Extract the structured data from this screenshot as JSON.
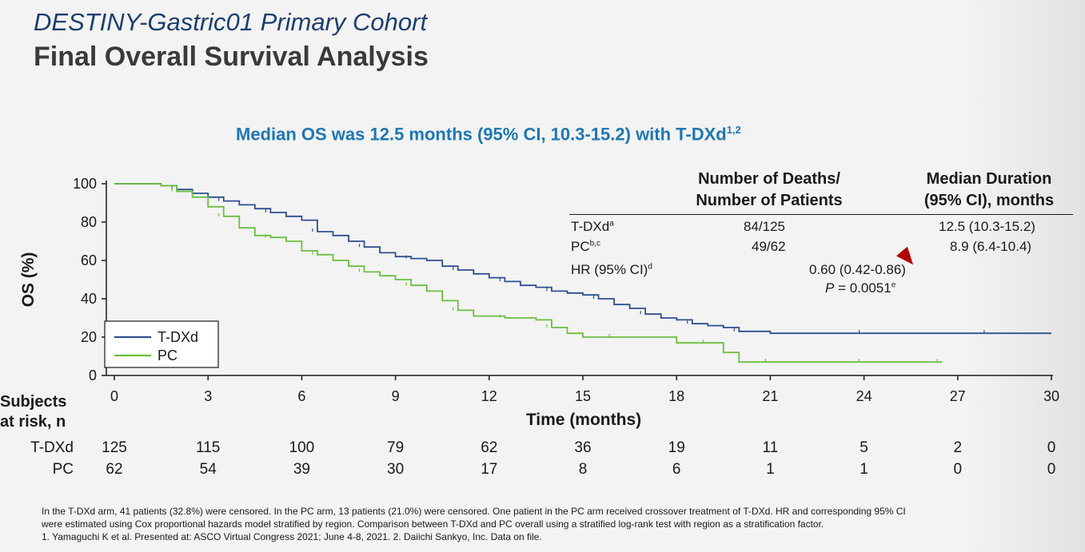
{
  "slide": {
    "kicker": "DESTINY-Gastric01 Primary Cohort",
    "title": "Final Overall Survival Analysis",
    "subtitle": "Median OS was 12.5 months (95% CI, 10.3-15.2) with T-DXd",
    "subtitle_refs": "1,2"
  },
  "colors": {
    "tdxd": "#2e4f8f",
    "pc": "#6abf3f",
    "subtitle": "#1f77b4",
    "kicker": "#1c3f6e"
  },
  "stats_table": {
    "header_deaths_line1": "Number of Deaths/",
    "header_deaths_line2": "Number of Patients",
    "header_median_line1": "Median Duration",
    "header_median_line2": "(95% CI), months",
    "rows": [
      {
        "label": "T-DXd",
        "sup": "a",
        "deaths": "84/125",
        "median": "12.5 (10.3-15.2)"
      },
      {
        "label": "PC",
        "sup": "b,c",
        "deaths": "49/62",
        "median": "8.9 (6.4-10.4)"
      }
    ],
    "hr_label": "HR (95% CI)",
    "hr_sup": "d",
    "hr_value": "0.60 (0.42-0.86)",
    "p_label": "P",
    "p_value": " = 0.0051",
    "p_sup": "e"
  },
  "chart_data": {
    "type": "line",
    "title": "",
    "xlabel": "Time (months)",
    "ylabel": "OS (%)",
    "xlim": [
      0,
      30
    ],
    "ylim": [
      0,
      100
    ],
    "xticks": [
      0,
      3,
      6,
      9,
      12,
      15,
      18,
      21,
      24,
      27,
      30
    ],
    "yticks": [
      0,
      20,
      40,
      60,
      80,
      100
    ],
    "grid": false,
    "legend_position": "bottom-left",
    "series": [
      {
        "name": "T-DXd",
        "color": "#2e4f8f",
        "x": [
          0,
          1.5,
          2,
          2.5,
          3,
          3.5,
          4,
          4.5,
          5,
          5.5,
          6,
          6.5,
          7,
          7.5,
          8,
          8.5,
          9,
          9.5,
          10,
          10.5,
          11,
          11.5,
          12,
          12.5,
          13,
          13.5,
          14,
          14.5,
          15,
          15.5,
          16,
          16.5,
          17,
          17.5,
          18,
          18.5,
          19,
          19.5,
          20,
          21,
          22,
          24,
          26,
          27,
          28,
          29,
          30
        ],
        "y": [
          100,
          99,
          97,
          95,
          93,
          91,
          89,
          87,
          85,
          83,
          81,
          75,
          73,
          70,
          67,
          64,
          62,
          61,
          60,
          57,
          55,
          53,
          51,
          49,
          47,
          46,
          44,
          43,
          42,
          40,
          37,
          35,
          32,
          30,
          29,
          27,
          26,
          25,
          23,
          22,
          22,
          22,
          22,
          22,
          22,
          22,
          22
        ]
      },
      {
        "name": "PC",
        "color": "#6abf3f",
        "x": [
          0,
          1.5,
          2,
          2.5,
          3,
          3.5,
          4,
          4.5,
          5,
          5.5,
          6,
          6.5,
          7,
          7.5,
          8,
          8.5,
          9,
          9.5,
          10,
          10.5,
          11,
          11.5,
          12,
          12.5,
          13,
          13.5,
          14,
          14.5,
          15,
          16,
          17,
          18,
          19,
          19.5,
          20,
          21,
          22,
          23,
          24,
          25,
          26,
          26.5
        ],
        "y": [
          100,
          99,
          96,
          93,
          88,
          83,
          77,
          73,
          72,
          70,
          65,
          63,
          60,
          57,
          54,
          52,
          50,
          47,
          44,
          39,
          34,
          31,
          31,
          30,
          30,
          29,
          25,
          22,
          20,
          20,
          20,
          17,
          17,
          12,
          7,
          7,
          7,
          7,
          7,
          7,
          7,
          7
        ]
      }
    ],
    "at_risk": {
      "title_line1": "Subjects",
      "title_line2": "at risk, n",
      "times": [
        0,
        3,
        6,
        9,
        12,
        15,
        18,
        21,
        24,
        27,
        30
      ],
      "rows": [
        {
          "name": "T-DXd",
          "counts": [
            125,
            115,
            100,
            79,
            62,
            36,
            19,
            11,
            5,
            2,
            0
          ]
        },
        {
          "name": "PC",
          "counts": [
            62,
            54,
            39,
            30,
            17,
            8,
            6,
            1,
            1,
            0,
            0
          ]
        }
      ]
    }
  },
  "footnotes": {
    "line1": "In the T-DXd arm, 41 patients (32.8%) were censored. In the PC arm, 13 patients (21.0%) were censored. One patient in the PC arm received crossover treatment of T-DXd. HR and corresponding 95% CI",
    "line2": "were estimated using Cox proportional hazards model stratified by region. Comparison between T-DXd and PC overall using a stratified log-rank test with region as a stratification factor.",
    "line3": "1. Yamaguchi K et al. Presented at: ASCO Virtual Congress 2021; June 4-8, 2021. 2. Daiichi Sankyo, Inc. Data on file."
  }
}
